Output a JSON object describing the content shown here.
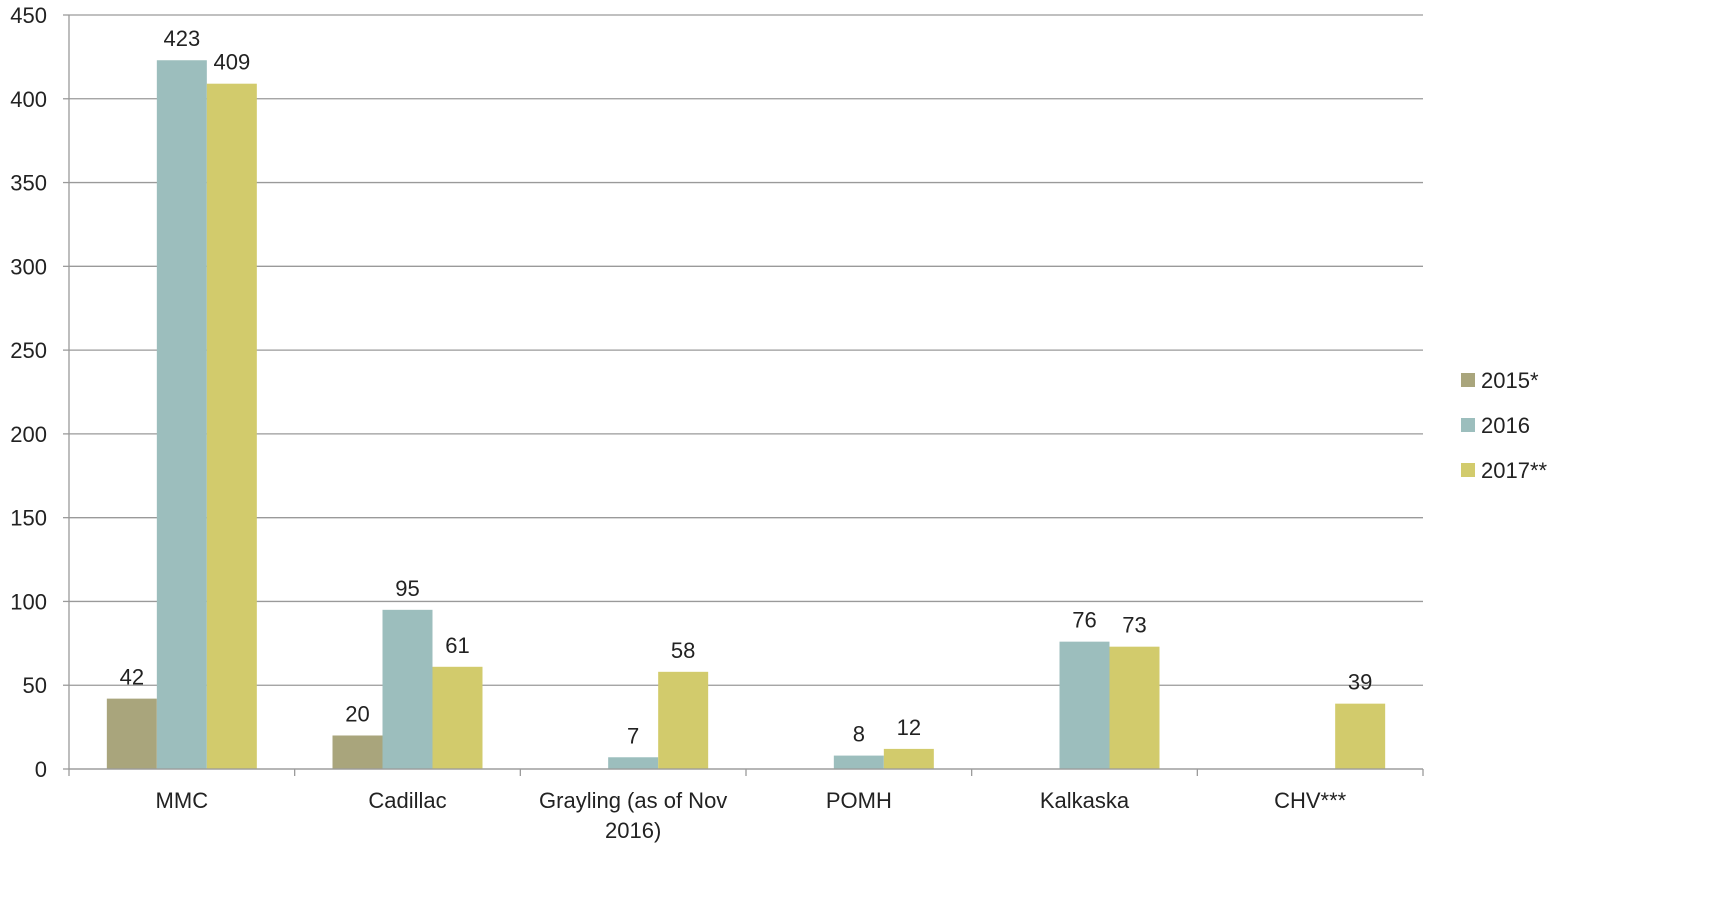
{
  "chart_data": {
    "type": "bar",
    "title": "",
    "xlabel": "",
    "ylabel": "",
    "ylim": [
      0,
      450
    ],
    "yticks": [
      0,
      50,
      100,
      150,
      200,
      250,
      300,
      350,
      400,
      450
    ],
    "grid": true,
    "legend_position": "right",
    "categories": [
      [
        "MMC"
      ],
      [
        "Cadillac"
      ],
      [
        "Grayling (as of Nov",
        "2016)"
      ],
      [
        "POMH"
      ],
      [
        "Kalkaska"
      ],
      [
        "CHV***"
      ]
    ],
    "series": [
      {
        "name": "2015*",
        "color": "#a9a57c",
        "values": [
          42,
          20,
          null,
          null,
          null,
          null
        ]
      },
      {
        "name": "2016",
        "color": "#9cbebd",
        "values": [
          423,
          95,
          7,
          8,
          76,
          null
        ]
      },
      {
        "name": "2017**",
        "color": "#d2cb6c",
        "values": [
          409,
          61,
          58,
          12,
          73,
          39
        ]
      }
    ]
  }
}
